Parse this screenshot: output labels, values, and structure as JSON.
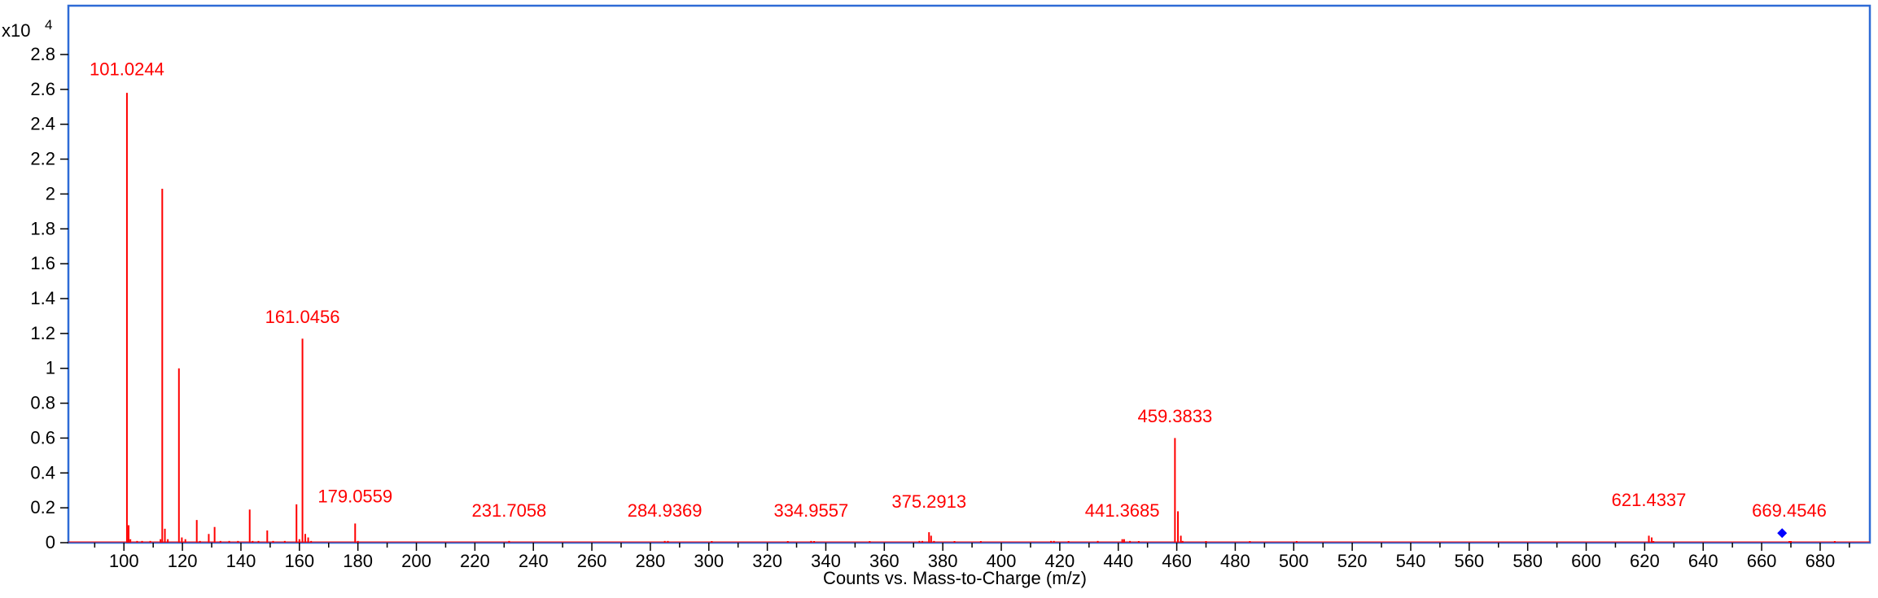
{
  "chart_data": {
    "type": "bar",
    "xlabel": "Counts vs. Mass-to-Charge (m/z)",
    "ylabel_multiplier": "x10",
    "ylabel_exponent": "4",
    "xlim": [
      81,
      697
    ],
    "ylim": [
      0,
      3.08
    ],
    "x_ticks": [
      100,
      120,
      140,
      160,
      180,
      200,
      220,
      240,
      260,
      280,
      300,
      320,
      340,
      360,
      380,
      400,
      420,
      440,
      460,
      480,
      500,
      520,
      540,
      560,
      580,
      600,
      620,
      640,
      660,
      680
    ],
    "y_ticks": [
      0,
      0.2,
      0.4,
      0.6,
      0.8,
      1,
      1.2,
      1.4,
      1.6,
      1.8,
      2,
      2.2,
      2.4,
      2.6,
      2.8
    ],
    "y_tick_labels": [
      "0",
      "0.2",
      "0.4",
      "0.6",
      "0.8",
      "1",
      "1.2",
      "1.4",
      "1.6",
      "1.8",
      "2",
      "2.2",
      "2.4",
      "2.6",
      "2.8"
    ],
    "peak_color": "#ff0000",
    "marker_color": "#0000ff",
    "frame_color": "#2e6bd6",
    "peaks": [
      {
        "mz": 101.0244,
        "intensity": 2.58
      },
      {
        "mz": 101.6,
        "intensity": 0.1
      },
      {
        "mz": 102.2,
        "intensity": 0.02
      },
      {
        "mz": 104.5,
        "intensity": 0.01
      },
      {
        "mz": 106.2,
        "intensity": 0.01
      },
      {
        "mz": 109.0,
        "intensity": 0.01
      },
      {
        "mz": 112.5,
        "intensity": 0.02
      },
      {
        "mz": 113.1,
        "intensity": 2.03
      },
      {
        "mz": 114.0,
        "intensity": 0.08
      },
      {
        "mz": 115.0,
        "intensity": 0.02
      },
      {
        "mz": 118.8,
        "intensity": 1.0
      },
      {
        "mz": 119.8,
        "intensity": 0.03
      },
      {
        "mz": 121.0,
        "intensity": 0.02
      },
      {
        "mz": 124.9,
        "intensity": 0.13
      },
      {
        "mz": 126.0,
        "intensity": 0.01
      },
      {
        "mz": 129.0,
        "intensity": 0.05
      },
      {
        "mz": 131.0,
        "intensity": 0.09
      },
      {
        "mz": 133.0,
        "intensity": 0.01
      },
      {
        "mz": 136.0,
        "intensity": 0.01
      },
      {
        "mz": 139.0,
        "intensity": 0.01
      },
      {
        "mz": 143.0,
        "intensity": 0.19
      },
      {
        "mz": 144.0,
        "intensity": 0.01
      },
      {
        "mz": 146.0,
        "intensity": 0.01
      },
      {
        "mz": 149.0,
        "intensity": 0.07
      },
      {
        "mz": 151.0,
        "intensity": 0.01
      },
      {
        "mz": 155.0,
        "intensity": 0.01
      },
      {
        "mz": 159.0,
        "intensity": 0.22
      },
      {
        "mz": 160.0,
        "intensity": 0.02
      },
      {
        "mz": 161.0456,
        "intensity": 1.17
      },
      {
        "mz": 162.0,
        "intensity": 0.05
      },
      {
        "mz": 163.0,
        "intensity": 0.03
      },
      {
        "mz": 164.0,
        "intensity": 0.01
      },
      {
        "mz": 179.0559,
        "intensity": 0.11
      },
      {
        "mz": 180.0,
        "intensity": 0.01
      },
      {
        "mz": 231.7058,
        "intensity": 0.01
      },
      {
        "mz": 284.9369,
        "intensity": 0.01
      },
      {
        "mz": 286.0,
        "intensity": 0.01
      },
      {
        "mz": 301.0,
        "intensity": 0.005
      },
      {
        "mz": 327.0,
        "intensity": 0.005
      },
      {
        "mz": 334.9557,
        "intensity": 0.01
      },
      {
        "mz": 336.0,
        "intensity": 0.005
      },
      {
        "mz": 355.0,
        "intensity": 0.005
      },
      {
        "mz": 372.0,
        "intensity": 0.01
      },
      {
        "mz": 373.0,
        "intensity": 0.01
      },
      {
        "mz": 375.2913,
        "intensity": 0.06
      },
      {
        "mz": 376.0,
        "intensity": 0.04
      },
      {
        "mz": 377.0,
        "intensity": 0.01
      },
      {
        "mz": 384.0,
        "intensity": 0.005
      },
      {
        "mz": 393.0,
        "intensity": 0.005
      },
      {
        "mz": 417.0,
        "intensity": 0.01
      },
      {
        "mz": 418.0,
        "intensity": 0.01
      },
      {
        "mz": 423.0,
        "intensity": 0.005
      },
      {
        "mz": 433.0,
        "intensity": 0.01
      },
      {
        "mz": 441.3685,
        "intensity": 0.02
      },
      {
        "mz": 442.0,
        "intensity": 0.02
      },
      {
        "mz": 444.0,
        "intensity": 0.01
      },
      {
        "mz": 447.0,
        "intensity": 0.005
      },
      {
        "mz": 459.3833,
        "intensity": 0.6
      },
      {
        "mz": 460.4,
        "intensity": 0.18
      },
      {
        "mz": 461.4,
        "intensity": 0.04
      },
      {
        "mz": 462.0,
        "intensity": 0.01
      },
      {
        "mz": 470.0,
        "intensity": 0.005
      },
      {
        "mz": 485.0,
        "intensity": 0.005
      },
      {
        "mz": 501.0,
        "intensity": 0.005
      },
      {
        "mz": 621.4337,
        "intensity": 0.04
      },
      {
        "mz": 622.4,
        "intensity": 0.03
      },
      {
        "mz": 623.0,
        "intensity": 0.005
      },
      {
        "mz": 669.4546,
        "intensity": 0.005
      },
      {
        "mz": 670.0,
        "intensity": 0.005
      },
      {
        "mz": 685.0,
        "intensity": 0.005
      }
    ],
    "annotations": [
      {
        "text": "101.0244",
        "mz": 101.0244,
        "intensity": 2.68
      },
      {
        "text": "161.0456",
        "mz": 161.0456,
        "intensity": 1.26
      },
      {
        "text": "179.0559",
        "mz": 179.0559,
        "intensity": 0.23
      },
      {
        "text": "231.7058",
        "mz": 231.7058,
        "intensity": 0.15
      },
      {
        "text": "284.9369",
        "mz": 284.9369,
        "intensity": 0.15
      },
      {
        "text": "334.9557",
        "mz": 334.9557,
        "intensity": 0.15
      },
      {
        "text": "375.2913",
        "mz": 375.2913,
        "intensity": 0.2
      },
      {
        "text": "441.3685",
        "mz": 441.3685,
        "intensity": 0.15
      },
      {
        "text": "459.3833",
        "mz": 459.3833,
        "intensity": 0.69
      },
      {
        "text": "621.4337",
        "mz": 621.4337,
        "intensity": 0.21
      },
      {
        "text": "669.4546",
        "mz": 669.4546,
        "intensity": 0.15
      }
    ],
    "precursor_marker": {
      "mz": 667.0,
      "intensity": 0.055
    }
  }
}
